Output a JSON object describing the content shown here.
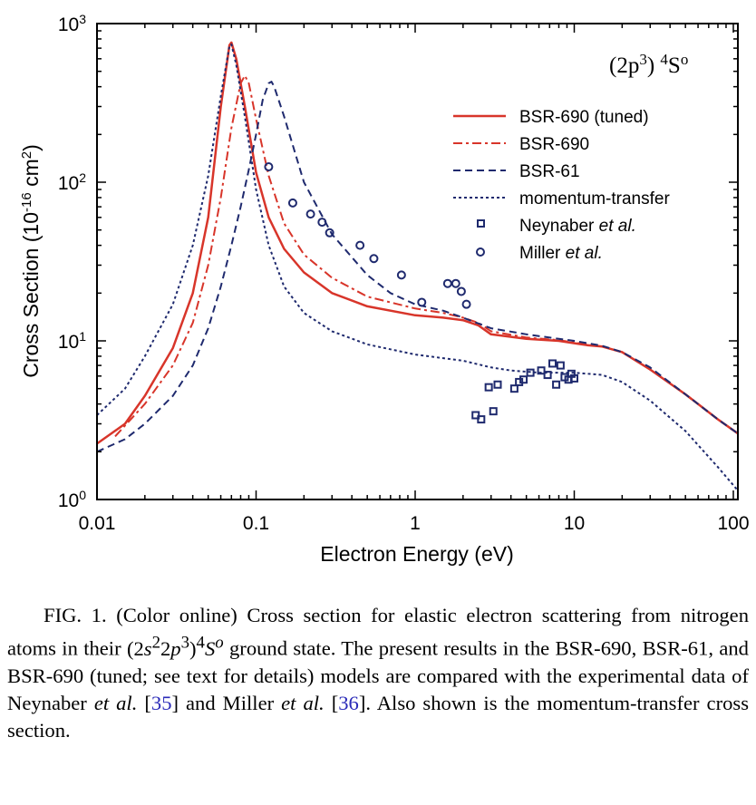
{
  "chart_data": {
    "type": "line",
    "xscale": "log",
    "yscale": "log",
    "xlim": [
      0.01,
      120
    ],
    "ylim": [
      1,
      1000
    ],
    "xlabel": "Electron Energy (eV)",
    "ylabel_main": "Cross Section (10",
    "ylabel_exp": "-16",
    "ylabel_mid": " cm",
    "ylabel_exp2": "2",
    "ylabel_end": ")",
    "x_ticks": [
      {
        "value": 0.01,
        "label": "0.01"
      },
      {
        "value": 0.1,
        "label": "0.1"
      },
      {
        "value": 1,
        "label": "1"
      },
      {
        "value": 10,
        "label": "10"
      },
      {
        "value": 100,
        "label": "100"
      }
    ],
    "y_ticks": [
      {
        "value": 1,
        "base": "10",
        "exp": "0"
      },
      {
        "value": 10,
        "base": "10",
        "exp": "1"
      },
      {
        "value": 100,
        "base": "10",
        "exp": "2"
      },
      {
        "value": 1000,
        "base": "10",
        "exp": "3"
      }
    ],
    "annotation": {
      "pre": "(2p",
      "sup1": "3",
      "mid": ") ",
      "sup2": "4",
      "post": "S",
      "sup3": "o"
    },
    "legend_position": "top-right",
    "series": [
      {
        "name": "BSR-690 (tuned)",
        "color": "#d8352a",
        "dash": "solid",
        "points": [
          [
            0.01,
            2.25
          ],
          [
            0.015,
            3.0
          ],
          [
            0.02,
            4.5
          ],
          [
            0.03,
            9
          ],
          [
            0.04,
            20
          ],
          [
            0.05,
            60
          ],
          [
            0.06,
            300
          ],
          [
            0.068,
            730
          ],
          [
            0.07,
            760
          ],
          [
            0.075,
            600
          ],
          [
            0.085,
            300
          ],
          [
            0.1,
            115
          ],
          [
            0.12,
            60
          ],
          [
            0.15,
            38
          ],
          [
            0.2,
            27
          ],
          [
            0.3,
            20
          ],
          [
            0.5,
            16.5
          ],
          [
            1,
            14.5
          ],
          [
            1.5,
            14
          ],
          [
            2,
            13.5
          ],
          [
            2.5,
            12.5
          ],
          [
            3,
            11
          ],
          [
            5,
            10.3
          ],
          [
            8,
            10
          ],
          [
            12,
            9.4
          ],
          [
            15,
            9.2
          ],
          [
            20,
            8.5
          ],
          [
            30,
            6.6
          ],
          [
            50,
            4.6
          ],
          [
            80,
            3.2
          ],
          [
            120,
            2.4
          ]
        ]
      },
      {
        "name": "BSR-690",
        "color": "#d8352a",
        "dash": "10,4,3,4",
        "points": [
          [
            0.013,
            2.5
          ],
          [
            0.02,
            4.0
          ],
          [
            0.03,
            7
          ],
          [
            0.04,
            13
          ],
          [
            0.05,
            30
          ],
          [
            0.06,
            80
          ],
          [
            0.07,
            220
          ],
          [
            0.08,
            420
          ],
          [
            0.085,
            470
          ],
          [
            0.09,
            420
          ],
          [
            0.1,
            250
          ],
          [
            0.12,
            110
          ],
          [
            0.15,
            55
          ],
          [
            0.2,
            35
          ],
          [
            0.3,
            25
          ],
          [
            0.5,
            19
          ],
          [
            1,
            16
          ],
          [
            1.5,
            15
          ],
          [
            2,
            14
          ],
          [
            2.5,
            13
          ],
          [
            3,
            11.5
          ],
          [
            5,
            10.5
          ],
          [
            8,
            10.1
          ],
          [
            12,
            9.5
          ],
          [
            15,
            9.2
          ],
          [
            20,
            8.5
          ],
          [
            30,
            6.6
          ],
          [
            50,
            4.6
          ],
          [
            80,
            3.2
          ],
          [
            120,
            2.4
          ]
        ]
      },
      {
        "name": "BSR-61",
        "color": "#1f2a6e",
        "dash": "8,5",
        "points": [
          [
            0.01,
            2.0
          ],
          [
            0.015,
            2.4
          ],
          [
            0.02,
            3.0
          ],
          [
            0.03,
            4.5
          ],
          [
            0.04,
            7
          ],
          [
            0.05,
            12
          ],
          [
            0.06,
            22
          ],
          [
            0.07,
            40
          ],
          [
            0.08,
            70
          ],
          [
            0.09,
            120
          ],
          [
            0.1,
            200
          ],
          [
            0.11,
            330
          ],
          [
            0.12,
            420
          ],
          [
            0.125,
            430
          ],
          [
            0.13,
            400
          ],
          [
            0.15,
            260
          ],
          [
            0.2,
            100
          ],
          [
            0.3,
            47
          ],
          [
            0.5,
            26
          ],
          [
            0.7,
            20
          ],
          [
            1,
            17
          ],
          [
            1.5,
            15.5
          ],
          [
            2,
            14
          ],
          [
            3,
            12
          ],
          [
            5,
            11
          ],
          [
            8,
            10.3
          ],
          [
            10,
            10
          ],
          [
            15,
            9.3
          ],
          [
            20,
            8.5
          ],
          [
            30,
            6.8
          ],
          [
            50,
            4.6
          ],
          [
            80,
            3.2
          ],
          [
            120,
            2.4
          ]
        ]
      },
      {
        "name": "momentum-transfer",
        "color": "#1f2a6e",
        "dash": "3,3",
        "points": [
          [
            0.01,
            3.4
          ],
          [
            0.015,
            5
          ],
          [
            0.02,
            8
          ],
          [
            0.03,
            17
          ],
          [
            0.04,
            40
          ],
          [
            0.05,
            110
          ],
          [
            0.06,
            350
          ],
          [
            0.068,
            720
          ],
          [
            0.07,
            740
          ],
          [
            0.075,
            550
          ],
          [
            0.085,
            260
          ],
          [
            0.1,
            90
          ],
          [
            0.12,
            40
          ],
          [
            0.15,
            22
          ],
          [
            0.2,
            15
          ],
          [
            0.3,
            11.5
          ],
          [
            0.5,
            9.5
          ],
          [
            1,
            8.2
          ],
          [
            2,
            7.5
          ],
          [
            3,
            6.8
          ],
          [
            4,
            6.5
          ],
          [
            6,
            6.3
          ],
          [
            10,
            6.3
          ],
          [
            15,
            6.1
          ],
          [
            20,
            5.5
          ],
          [
            30,
            4.2
          ],
          [
            50,
            2.7
          ],
          [
            80,
            1.6
          ],
          [
            110,
            1.1
          ]
        ]
      }
    ],
    "scatter": [
      {
        "name_pre": "Neynaber ",
        "name_italic": "et al.",
        "marker": "square",
        "color": "#1f2a6e",
        "points": [
          [
            2.4,
            3.4
          ],
          [
            2.6,
            3.2
          ],
          [
            2.9,
            5.1
          ],
          [
            3.1,
            3.6
          ],
          [
            3.3,
            5.3
          ],
          [
            4.2,
            5.0
          ],
          [
            4.5,
            5.5
          ],
          [
            4.8,
            5.7
          ],
          [
            5.3,
            6.3
          ],
          [
            6.2,
            6.5
          ],
          [
            6.8,
            6.1
          ],
          [
            7.3,
            7.2
          ],
          [
            7.7,
            5.3
          ],
          [
            8.2,
            7.0
          ],
          [
            8.7,
            5.9
          ],
          [
            9.2,
            5.7
          ],
          [
            9.6,
            6.2
          ],
          [
            10.0,
            5.8
          ]
        ]
      },
      {
        "name_pre": "Miller ",
        "name_italic": "et al.",
        "marker": "circle",
        "color": "#1f2a6e",
        "points": [
          [
            0.12,
            125
          ],
          [
            0.17,
            74
          ],
          [
            0.22,
            63
          ],
          [
            0.26,
            56
          ],
          [
            0.29,
            48
          ],
          [
            0.45,
            40
          ],
          [
            0.55,
            33
          ],
          [
            0.82,
            26
          ],
          [
            1.1,
            17.5
          ],
          [
            1.6,
            23
          ],
          [
            1.8,
            23
          ],
          [
            1.95,
            20.5
          ],
          [
            2.1,
            17
          ]
        ]
      }
    ]
  },
  "caption": {
    "fig": "FIG. 1. (Color online)",
    "p1": "Cross section for elastic electron scattering from nitrogen atoms in their ",
    "f_open": "(2",
    "f_s": "s",
    "f_s_sup": "2",
    "f_two": "2",
    "f_p": "p",
    "f_p_sup": "3",
    "f_close": ")",
    "f_4": "4",
    "f_S": "S",
    "f_o": "o",
    "p2": " ground state. The present results in the BSR-690, BSR-61, and BSR-690 (tuned; see text for details) models are compared with the experimental data of Neynaber ",
    "etal1": "et al.",
    "ref1_open": " [",
    "ref1": "35",
    "ref1_close": "] and Miller ",
    "etal2": "et al.",
    "ref2_open": " [",
    "ref2": "36",
    "ref2_close": "]. Also shown is the momentum-transfer cross section."
  }
}
